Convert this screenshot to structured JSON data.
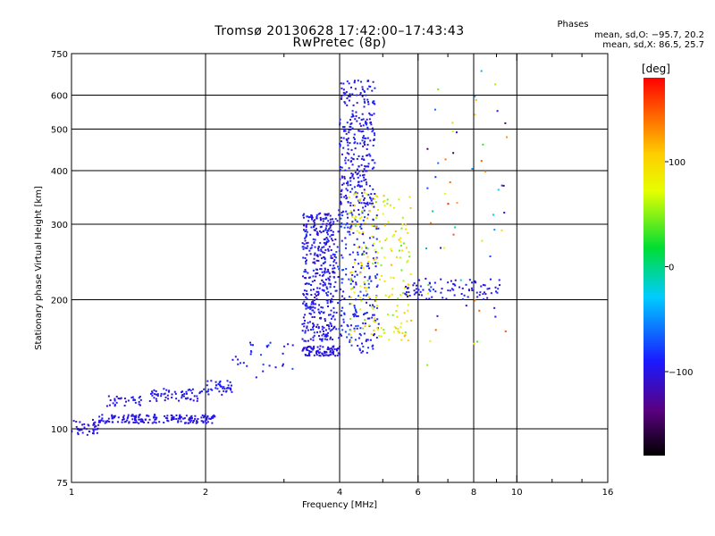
{
  "header": {
    "title": "Tromsø 20130628 17:42:00–17:43:43",
    "subtitle": "RwPretec (8p)",
    "stats_title": "Phases",
    "stats_line1": "mean, sd,O: −95.7, 20.2",
    "stats_line2": "mean, sd,X:  86.5, 25.7"
  },
  "colorbar": {
    "label": "[deg]",
    "range": [
      -180,
      180
    ],
    "ticks": [
      {
        "value": 100,
        "label": "100"
      },
      {
        "value": 0,
        "label": "0"
      },
      {
        "value": -100,
        "label": "−100"
      }
    ]
  },
  "chart_data": {
    "type": "scatter",
    "title": "Tromsø 20130628 17:42:00–17:43:43",
    "subtitle": "RwPretec (8p)",
    "xlabel": "Frequency [MHz]",
    "ylabel": "Stationary phase Virtual Height [km]",
    "x_scale": "log",
    "y_scale": "log",
    "xlim": [
      1,
      16
    ],
    "ylim": [
      75,
      750
    ],
    "x_ticks": [
      {
        "value": 1,
        "label": "1"
      },
      {
        "value": 2,
        "label": "2"
      },
      {
        "value": 4,
        "label": "4"
      },
      {
        "value": 6,
        "label": "6"
      },
      {
        "value": 8,
        "label": "8"
      },
      {
        "value": 10,
        "label": "10"
      },
      {
        "value": 16,
        "label": "16"
      }
    ],
    "x_minor_ticks": [
      3,
      5,
      7,
      9,
      12,
      14
    ],
    "y_ticks": [
      {
        "value": 75,
        "label": "75"
      },
      {
        "value": 100,
        "label": "100"
      },
      {
        "value": 200,
        "label": "200"
      },
      {
        "value": 300,
        "label": "300"
      },
      {
        "value": 400,
        "label": "400"
      },
      {
        "value": 500,
        "label": "500"
      },
      {
        "value": 600,
        "label": "600"
      },
      {
        "value": 750,
        "label": "750"
      }
    ],
    "grid_x": [
      2,
      4,
      6,
      8,
      10
    ],
    "grid_y": [
      100,
      200,
      300,
      400,
      500,
      600
    ],
    "color_variable": "Phase [deg]",
    "colormap": "rainbow",
    "series": [
      {
        "clusters": [
          {
            "x_range": [
              1.0,
              1.15
            ],
            "height": [
              96,
              105
            ],
            "phase": [
              -115,
              -90
            ],
            "n": 40
          },
          {
            "x_range": [
              1.15,
              2.1
            ],
            "height": [
              103,
              108
            ],
            "phase": [
              -110,
              -90
            ],
            "n": 180
          },
          {
            "x_range": [
              1.2,
              1.45
            ],
            "height": [
              113,
              120
            ],
            "phase": [
              -110,
              -85
            ],
            "n": 30
          },
          {
            "x_range": [
              1.5,
              2.0
            ],
            "height": [
              116,
              124
            ],
            "phase": [
              -110,
              -85
            ],
            "n": 60
          },
          {
            "x_range": [
              2.0,
              2.3
            ],
            "height": [
              120,
              130
            ],
            "phase": [
              -105,
              -80
            ],
            "n": 40
          },
          {
            "x_range": [
              2.3,
              3.2
            ],
            "height": [
              130,
              160
            ],
            "phase": [
              -110,
              -70
            ],
            "n": 30
          },
          {
            "x_range": [
              3.3,
              4.0
            ],
            "height": [
              148,
              156
            ],
            "phase": [
              -110,
              -90
            ],
            "n": 90
          },
          {
            "x_range": [
              3.3,
              3.9
            ],
            "height": [
              160,
              320
            ],
            "phase": [
              -115,
              -80
            ],
            "n": 420
          },
          {
            "x_range": [
              3.9,
              4.9
            ],
            "height": [
              150,
              330
            ],
            "phase": [
              -110,
              -70
            ],
            "n": 250
          },
          {
            "x_range": [
              4.0,
              4.8
            ],
            "height": [
              330,
              650
            ],
            "phase": [
              -110,
              -80
            ],
            "n": 300
          },
          {
            "x_range": [
              4.2,
              5.8
            ],
            "height": [
              160,
              360
            ],
            "phase": [
              40,
              120
            ],
            "n": 200
          },
          {
            "x_range": [
              5.6,
              9.2
            ],
            "height": [
              200,
              225
            ],
            "phase": [
              -115,
              -80
            ],
            "n": 90
          },
          {
            "x_range": [
              6.2,
              9.5
            ],
            "height": [
              140,
              700
            ],
            "phase": [
              -150,
              170
            ],
            "n": 60
          }
        ]
      }
    ]
  }
}
